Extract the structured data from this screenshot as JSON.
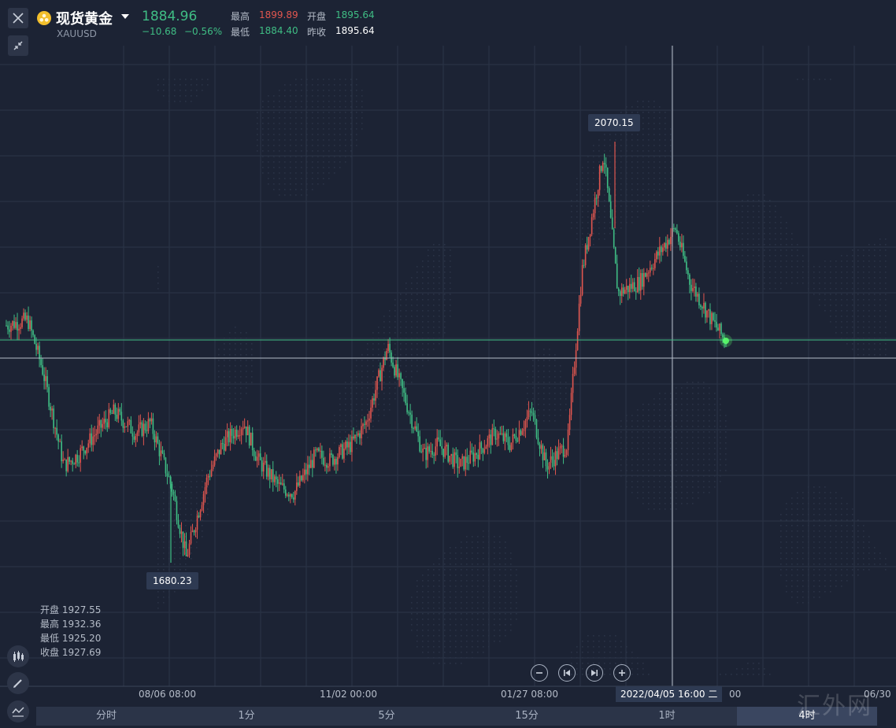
{
  "header": {
    "title": "现货黄金",
    "symbol": "XAUUSD",
    "price": "1884.96",
    "change": "−10.68",
    "change_pct": "−0.56%",
    "high_label": "最高",
    "high": "1899.89",
    "open_label": "开盘",
    "open": "1895.64",
    "low_label": "最低",
    "low": "1884.40",
    "prev_label": "昨收",
    "prev_close": "1895.64"
  },
  "colors": {
    "up": "#e0564f",
    "down": "#3fbd84",
    "accent_line": "#3fbd84"
  },
  "markers": {
    "max_label": "2070.15",
    "min_label": "1680.23"
  },
  "ohlc_panel": {
    "open": "开盘 1927.55",
    "high": "最高 1932.36",
    "low": "最低 1925.20",
    "close": "收盘 1927.69"
  },
  "x_axis": {
    "labels": [
      "08/06 08:00",
      "11/02 00:00",
      "01/27 08:00",
      "00",
      "06/30"
    ],
    "crosshair_label": "2022/04/05 16:00 二"
  },
  "periods": [
    "分时",
    "1分",
    "5分",
    "15分",
    "1时",
    "4时"
  ],
  "active_period": "4时",
  "watermark": "汇外网",
  "icons": [
    "close-icon",
    "shrink-icon",
    "gold-coin-icon",
    "candlestick-icon",
    "pencil-icon",
    "indicator-icon",
    "zoom-out-icon",
    "step-back-icon",
    "step-forward-icon",
    "zoom-in-icon"
  ],
  "chart_data": {
    "type": "line",
    "x": [
      0,
      3,
      5,
      8,
      10,
      13,
      15,
      18,
      20,
      23,
      25,
      28,
      30,
      33,
      35,
      38,
      40,
      43,
      45,
      48,
      50,
      53,
      55,
      58,
      60,
      63,
      65,
      68,
      70,
      73,
      75,
      78,
      80,
      83,
      85,
      88,
      90,
      93,
      95,
      98,
      100
    ],
    "series": [
      {
        "values": [
          1900,
          1905,
          1860,
          1770,
          1780,
          1805,
          1820,
          1800,
          1810,
          1750,
          1685,
          1760,
          1790,
          1810,
          1775,
          1750,
          1745,
          1780,
          1775,
          1790,
          1810,
          1880,
          1840,
          1780,
          1790,
          1770,
          1780,
          1800,
          1790,
          1820,
          1770,
          1790,
          1950,
          2060,
          1930,
          1940,
          1960,
          1990,
          1940,
          1905,
          1885
        ]
      }
    ],
    "extremes": {
      "max": 2070.15,
      "min": 1680.23
    },
    "last": 1884.96,
    "prev_close": 1895.64,
    "grid": true
  }
}
